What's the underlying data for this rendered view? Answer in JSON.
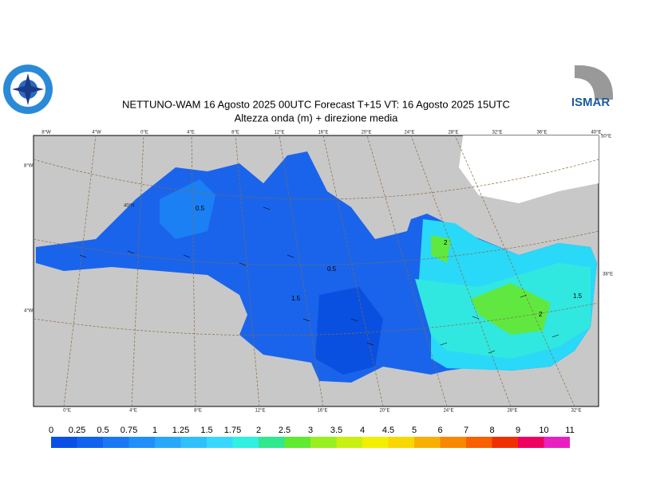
{
  "header": {
    "title": "NETTUNO-WAM  16   Agosto  2025 00UTC Forecast T+15 VT: 16   Agosto  2025 15UTC",
    "subtitle": "Altezza onda (m) + direzione media",
    "logo_right": "ISMAR"
  },
  "map": {
    "top_labels": [
      "8°W",
      "4°W",
      "0°E",
      "4°E",
      "8°E",
      "12°E",
      "16°E",
      "20°E",
      "24°E",
      "28°E",
      "32°E",
      "36°E",
      "40°E"
    ],
    "bottom_labels": [
      "0°E",
      "4°E",
      "8°E",
      "12°E",
      "16°E",
      "20°E",
      "24°E",
      "28°E",
      "32°E"
    ],
    "left_labels": [
      "8°W",
      "40°N",
      "4°W"
    ],
    "right_labels": [
      "50°E",
      "38°E"
    ],
    "contour_labels": [
      "0.5",
      "0.5",
      "1.5",
      "2",
      "2",
      "1.5"
    ]
  },
  "colorbar": {
    "levels": [
      0,
      0.25,
      0.5,
      0.75,
      1,
      1.25,
      1.5,
      1.75,
      2,
      2.5,
      3,
      3.5,
      4,
      4.5,
      5,
      6,
      7,
      8,
      9,
      10,
      11
    ],
    "colors": [
      "#0a4fe6",
      "#1262f0",
      "#1a78f5",
      "#2090f8",
      "#28a8fa",
      "#30c0fc",
      "#38d8fe",
      "#30f0e0",
      "#30e890",
      "#60ea30",
      "#98f020",
      "#c8f010",
      "#f0f000",
      "#f8d800",
      "#f8b000",
      "#f88800",
      "#f86000",
      "#f03000",
      "#f00060",
      "#e820c0"
    ]
  }
}
